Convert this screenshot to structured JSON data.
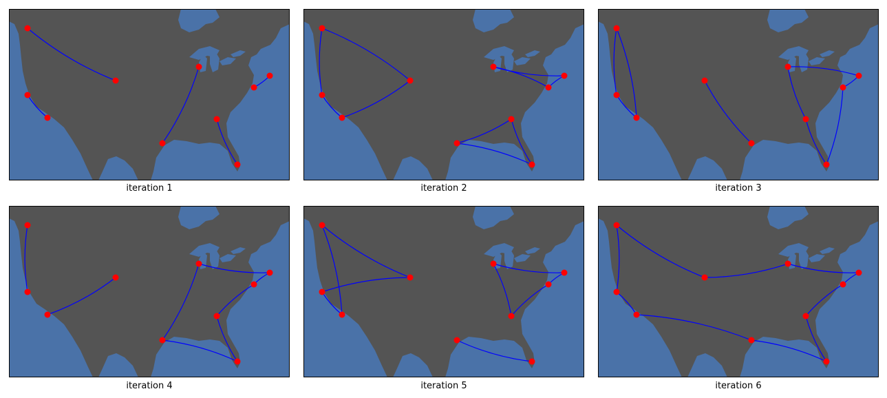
{
  "colors": {
    "ocean": "#4a72a8",
    "land": "#545454",
    "route": "#0000ff",
    "city": "#ff0000",
    "frame": "#000000"
  },
  "cities": [
    "Seattle",
    "San Francisco",
    "Los Angeles",
    "Denver",
    "Houston",
    "Chicago",
    "Atlanta",
    "Miami",
    "Washington DC",
    "New York"
  ],
  "panels": [
    {
      "caption": "iteration 1",
      "routes": [
        [
          0,
          3
        ],
        [
          1,
          2
        ],
        [
          4,
          5
        ],
        [
          6,
          7
        ],
        [
          8,
          9
        ]
      ]
    },
    {
      "caption": "iteration 2",
      "routes": [
        [
          0,
          1
        ],
        [
          1,
          2
        ],
        [
          2,
          3
        ],
        [
          3,
          0
        ],
        [
          5,
          9
        ],
        [
          9,
          8
        ],
        [
          8,
          5
        ],
        [
          4,
          6
        ],
        [
          6,
          7
        ],
        [
          7,
          4
        ]
      ]
    },
    {
      "caption": "iteration 3",
      "routes": [
        [
          0,
          1
        ],
        [
          1,
          2
        ],
        [
          2,
          0
        ],
        [
          3,
          4
        ],
        [
          5,
          6
        ],
        [
          6,
          7
        ],
        [
          7,
          8
        ],
        [
          8,
          9
        ],
        [
          9,
          5
        ]
      ]
    },
    {
      "caption": "iteration 4",
      "routes": [
        [
          0,
          1
        ],
        [
          2,
          3
        ],
        [
          4,
          5
        ],
        [
          5,
          9
        ],
        [
          9,
          8
        ],
        [
          8,
          6
        ],
        [
          6,
          7
        ],
        [
          7,
          4
        ]
      ]
    },
    {
      "caption": "iteration 5",
      "routes": [
        [
          0,
          3
        ],
        [
          3,
          1
        ],
        [
          1,
          2
        ],
        [
          2,
          0
        ],
        [
          5,
          9
        ],
        [
          9,
          8
        ],
        [
          8,
          6
        ],
        [
          6,
          5
        ],
        [
          4,
          7
        ]
      ]
    },
    {
      "caption": "iteration 6",
      "routes": [
        [
          0,
          3
        ],
        [
          3,
          5
        ],
        [
          5,
          9
        ],
        [
          9,
          8
        ],
        [
          8,
          6
        ],
        [
          6,
          7
        ],
        [
          7,
          4
        ],
        [
          4,
          2
        ],
        [
          2,
          1
        ],
        [
          1,
          0
        ]
      ]
    }
  ]
}
